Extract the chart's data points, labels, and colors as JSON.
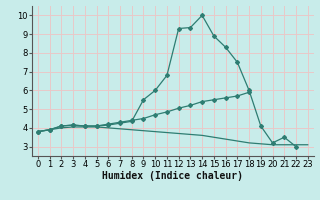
{
  "background_color": "#c8ecea",
  "grid_color": "#e8c8c8",
  "line_color": "#2e7d72",
  "xlabel": "Humidex (Indice chaleur)",
  "ylim": [
    2.5,
    10.5
  ],
  "xlim": [
    -0.5,
    23.5
  ],
  "yticks": [
    3,
    4,
    5,
    6,
    7,
    8,
    9,
    10
  ],
  "xticks": [
    0,
    1,
    2,
    3,
    4,
    5,
    6,
    7,
    8,
    9,
    10,
    11,
    12,
    13,
    14,
    15,
    16,
    17,
    18,
    19,
    20,
    21,
    22,
    23
  ],
  "series1": {
    "x": [
      0,
      1,
      2,
      3,
      4,
      5,
      6,
      7,
      8,
      9,
      10,
      11,
      12,
      13,
      14,
      15,
      16,
      17,
      18,
      19,
      20,
      21,
      22
    ],
    "y": [
      3.8,
      3.9,
      4.1,
      4.15,
      4.1,
      4.1,
      4.15,
      4.25,
      4.35,
      5.5,
      6.0,
      6.8,
      9.3,
      9.35,
      10.0,
      8.9,
      8.3,
      7.5,
      6.0,
      4.1,
      3.2,
      3.5,
      3.0
    ]
  },
  "series2": {
    "x": [
      0,
      1,
      2,
      3,
      4,
      5,
      6,
      7,
      8,
      9,
      10,
      11,
      12,
      13,
      14,
      15,
      16,
      17,
      18
    ],
    "y": [
      3.8,
      3.9,
      4.1,
      4.15,
      4.1,
      4.1,
      4.2,
      4.3,
      4.4,
      4.5,
      4.7,
      4.85,
      5.05,
      5.2,
      5.4,
      5.5,
      5.6,
      5.7,
      5.9
    ]
  },
  "series3": {
    "x": [
      0,
      1,
      2,
      3,
      4,
      5,
      6,
      7,
      8,
      9,
      10,
      11,
      12,
      13,
      14,
      15,
      16,
      17,
      18,
      19,
      20,
      21,
      22,
      23
    ],
    "y": [
      3.8,
      3.9,
      4.0,
      4.05,
      4.05,
      4.05,
      4.0,
      3.95,
      3.9,
      3.85,
      3.8,
      3.75,
      3.7,
      3.65,
      3.6,
      3.5,
      3.4,
      3.3,
      3.2,
      3.15,
      3.1,
      3.1,
      3.1,
      3.1
    ]
  },
  "xlabel_fontsize": 7,
  "tick_fontsize": 6,
  "marker_size": 2.0,
  "line_width": 0.9
}
